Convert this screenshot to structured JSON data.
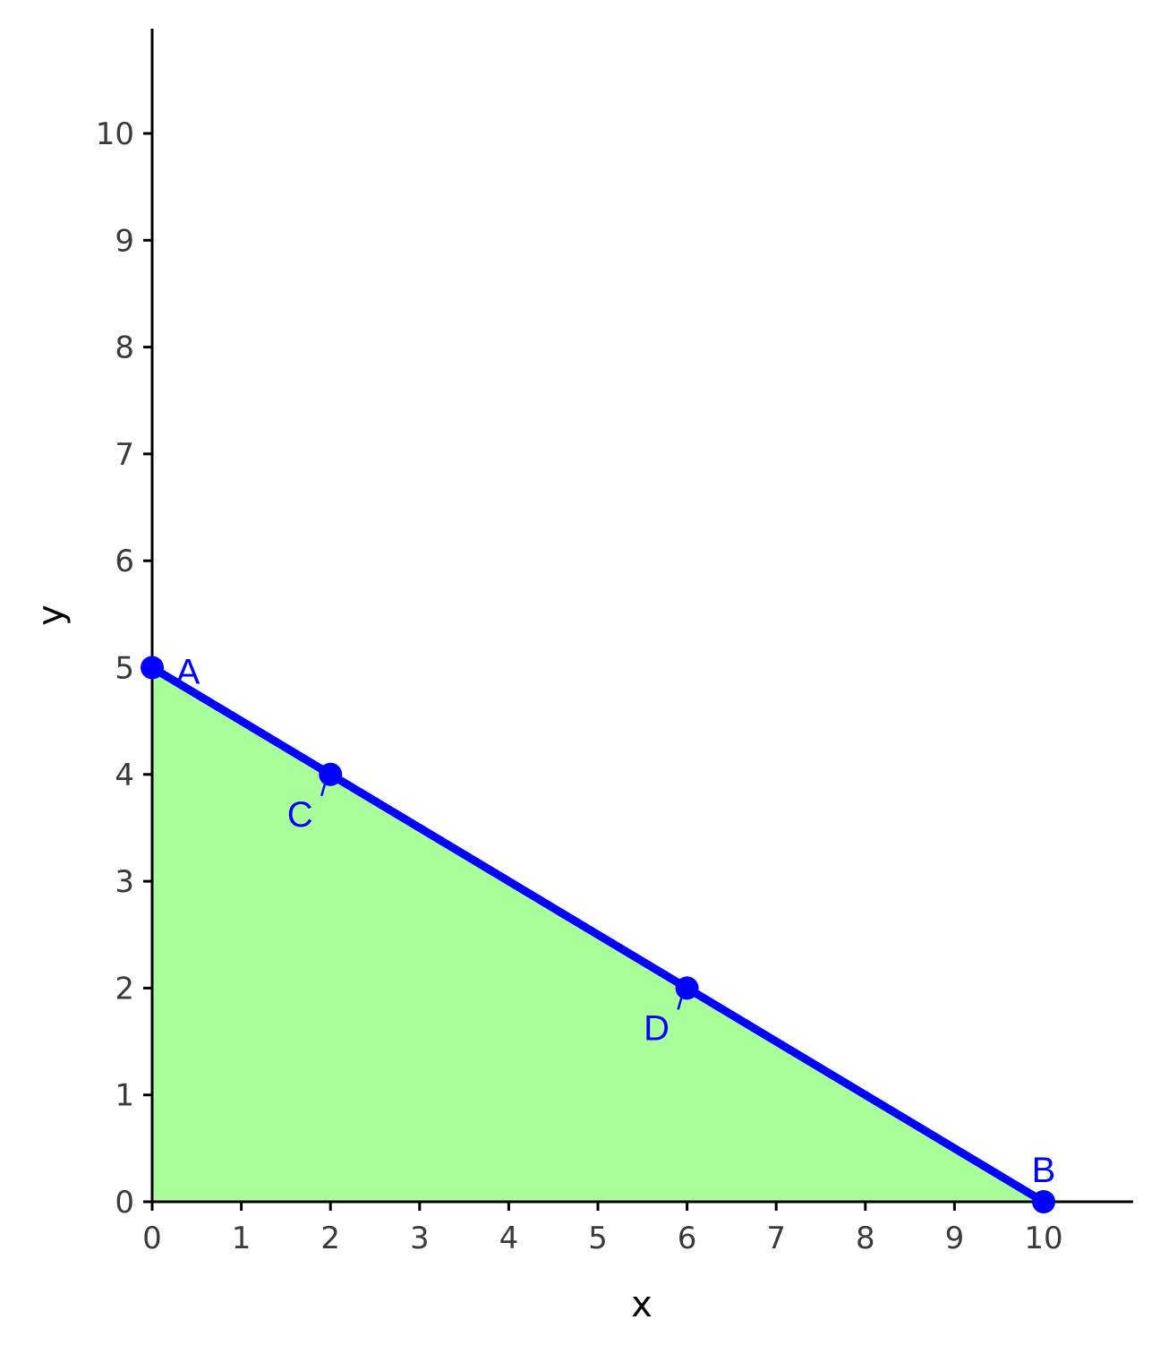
{
  "chart_data": {
    "type": "line",
    "title": "",
    "xlabel": "x",
    "ylabel": "y",
    "xlim": [
      0,
      11
    ],
    "ylim": [
      0,
      11
    ],
    "x_ticks": [
      "0",
      "1",
      "2",
      "3",
      "4",
      "5",
      "6",
      "7",
      "8",
      "9",
      "10"
    ],
    "y_ticks": [
      "0",
      "1",
      "2",
      "3",
      "4",
      "5",
      "6",
      "7",
      "8",
      "9",
      "10"
    ],
    "grid": false,
    "legend": "none",
    "series": [
      {
        "x": [
          0,
          10
        ],
        "y": [
          5,
          0
        ],
        "color": "#0000ff",
        "fill_below": "#a9ff9a"
      }
    ],
    "points": [
      {
        "label": "A",
        "x": 0,
        "y": 5
      },
      {
        "label": "C",
        "x": 2,
        "y": 4
      },
      {
        "label": "D",
        "x": 6,
        "y": 2
      },
      {
        "label": "B",
        "x": 10,
        "y": 0
      }
    ],
    "colors": {
      "line": "#0000ff",
      "fill": "#a9ff9a",
      "axis": "#000000",
      "tick_text": "#3a3a3a",
      "point_label": "#0000ff"
    }
  }
}
